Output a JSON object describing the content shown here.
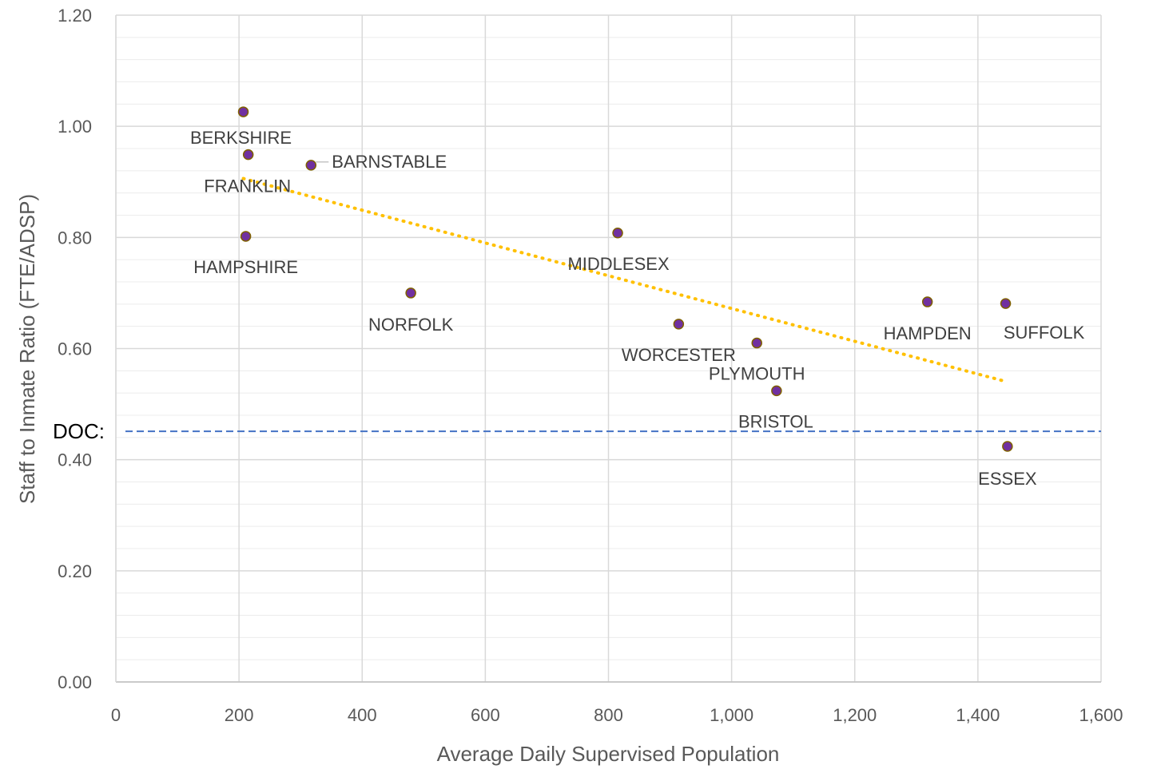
{
  "chart_data": {
    "type": "scatter",
    "xlabel": "Average Daily Supervised Population",
    "ylabel": "Staff to Inmate Ratio (FTE/ADSP)",
    "xlim": [
      0,
      1600
    ],
    "ylim": [
      0,
      1.2
    ],
    "x_ticks": [
      0,
      200,
      400,
      600,
      800,
      1000,
      1200,
      1400,
      1600
    ],
    "x_tick_labels": [
      "0",
      "200",
      "400",
      "600",
      "800",
      "1,000",
      "1,200",
      "1,400",
      "1,600"
    ],
    "y_ticks": [
      0,
      0.2,
      0.4,
      0.6,
      0.8,
      1.0,
      1.2
    ],
    "y_tick_labels": [
      "0.00",
      "0.20",
      "0.40",
      "0.60",
      "0.80",
      "1.00",
      "1.20"
    ],
    "grid": true,
    "points": [
      {
        "label": "BERKSHIRE",
        "x": 207,
        "y": 1.026
      },
      {
        "label": "FRANKLIN",
        "x": 215,
        "y": 0.949
      },
      {
        "label": "BARNSTABLE",
        "x": 317,
        "y": 0.93
      },
      {
        "label": "HAMPSHIRE",
        "x": 211,
        "y": 0.802
      },
      {
        "label": "NORFOLK",
        "x": 479,
        "y": 0.7
      },
      {
        "label": "MIDDLESEX",
        "x": 815,
        "y": 0.808
      },
      {
        "label": "WORCESTER",
        "x": 914,
        "y": 0.644
      },
      {
        "label": "PLYMOUTH",
        "x": 1041,
        "y": 0.61
      },
      {
        "label": "BRISTOL",
        "x": 1073,
        "y": 0.524
      },
      {
        "label": "HAMPDEN",
        "x": 1318,
        "y": 0.684
      },
      {
        "label": "SUFFOLK",
        "x": 1445,
        "y": 0.681
      },
      {
        "label": "ESSEX",
        "x": 1448,
        "y": 0.424
      }
    ],
    "trendline": {
      "x": [
        207,
        1448
      ],
      "y": [
        0.906,
        0.54
      ]
    },
    "reference_line": {
      "label": "DOC:",
      "y": 0.451
    },
    "colors": {
      "marker_fill": "#7030a0",
      "marker_edge": "#7f6000",
      "trendline": "#ffc000",
      "reference_line": "#4472c4",
      "grid": "#d9d9d9"
    }
  }
}
